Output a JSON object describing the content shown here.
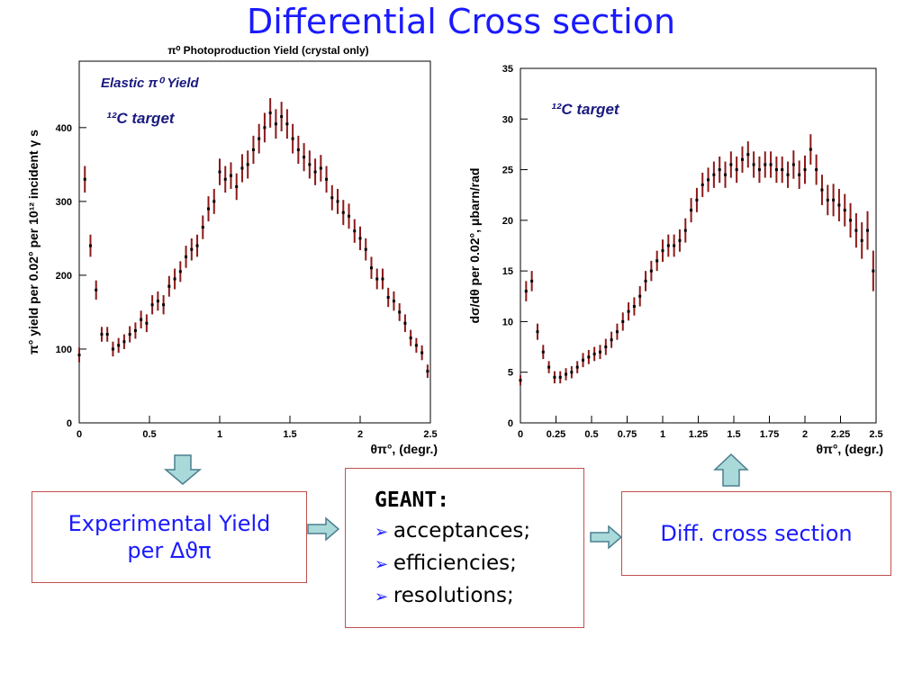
{
  "title": "Differential Cross section",
  "chart_data": [
    {
      "type": "scatter",
      "title": "π⁰ Photoproduction Yield (crystal only)",
      "xlabel": "θπ°, (degr.)",
      "ylabel": "π° yield per 0.02° per 10¹² incident γ s",
      "annotations": [
        "Elastic π⁰ Yield",
        "¹²C target"
      ],
      "color": "#8b1a1a",
      "xlim": [
        0,
        2.5
      ],
      "ylim": [
        0,
        490
      ],
      "xticks": [
        0,
        0.5,
        1,
        1.5,
        2,
        2.5
      ],
      "yticks": [
        0,
        100,
        200,
        300,
        400
      ],
      "x": [
        0,
        0.04,
        0.08,
        0.12,
        0.16,
        0.2,
        0.24,
        0.28,
        0.32,
        0.36,
        0.4,
        0.44,
        0.48,
        0.52,
        0.56,
        0.6,
        0.64,
        0.68,
        0.72,
        0.76,
        0.8,
        0.84,
        0.88,
        0.92,
        0.96,
        1,
        1.04,
        1.08,
        1.12,
        1.16,
        1.2,
        1.24,
        1.28,
        1.32,
        1.36,
        1.4,
        1.44,
        1.48,
        1.52,
        1.56,
        1.6,
        1.64,
        1.68,
        1.72,
        1.76,
        1.8,
        1.84,
        1.88,
        1.92,
        1.96,
        2,
        2.04,
        2.08,
        2.12,
        2.16,
        2.2,
        2.24,
        2.28,
        2.32,
        2.36,
        2.4,
        2.44,
        2.48
      ],
      "values": [
        92,
        330,
        240,
        180,
        120,
        120,
        100,
        105,
        110,
        120,
        125,
        140,
        135,
        160,
        165,
        160,
        185,
        195,
        205,
        225,
        235,
        240,
        265,
        290,
        300,
        340,
        330,
        335,
        320,
        345,
        350,
        370,
        385,
        400,
        420,
        405,
        415,
        405,
        385,
        370,
        360,
        350,
        340,
        345,
        330,
        305,
        300,
        285,
        280,
        260,
        250,
        235,
        210,
        195,
        195,
        170,
        165,
        150,
        135,
        115,
        105,
        95,
        70
      ],
      "errors": [
        10,
        18,
        15,
        13,
        10,
        10,
        10,
        10,
        10,
        11,
        11,
        12,
        12,
        13,
        13,
        13,
        14,
        14,
        14,
        15,
        15,
        15,
        16,
        17,
        17,
        18,
        18,
        18,
        18,
        19,
        19,
        19,
        20,
        20,
        20,
        20,
        20,
        20,
        20,
        19,
        19,
        19,
        18,
        18,
        18,
        17,
        17,
        17,
        17,
        16,
        16,
        15,
        15,
        14,
        14,
        13,
        13,
        12,
        12,
        11,
        10,
        10,
        9
      ]
    },
    {
      "type": "scatter",
      "xlabel": "θπ°, (degr.)",
      "ylabel": "dσ/dθ per 0.02°, μbarn/rad",
      "annotations": [
        "¹²C target"
      ],
      "color": "#8b1a1a",
      "xlim": [
        0,
        2.5
      ],
      "ylim": [
        0,
        35
      ],
      "xticks": [
        0,
        0.25,
        0.5,
        0.75,
        1,
        1.25,
        1.5,
        1.75,
        2,
        2.25,
        2.5
      ],
      "yticks": [
        0,
        5,
        10,
        15,
        20,
        25,
        30,
        35
      ],
      "x": [
        0,
        0.04,
        0.08,
        0.12,
        0.16,
        0.2,
        0.24,
        0.28,
        0.32,
        0.36,
        0.4,
        0.44,
        0.48,
        0.52,
        0.56,
        0.6,
        0.64,
        0.68,
        0.72,
        0.76,
        0.8,
        0.84,
        0.88,
        0.92,
        0.96,
        1,
        1.04,
        1.08,
        1.12,
        1.16,
        1.2,
        1.24,
        1.28,
        1.32,
        1.36,
        1.4,
        1.44,
        1.48,
        1.52,
        1.56,
        1.6,
        1.64,
        1.68,
        1.72,
        1.76,
        1.8,
        1.84,
        1.88,
        1.92,
        1.96,
        2,
        2.04,
        2.08,
        2.12,
        2.16,
        2.2,
        2.24,
        2.28,
        2.32,
        2.36,
        2.4,
        2.44,
        2.48
      ],
      "values": [
        4.2,
        13,
        14,
        9,
        7,
        5.5,
        4.5,
        4.5,
        4.8,
        5,
        5.5,
        6.2,
        6.5,
        6.8,
        7,
        7.5,
        8.2,
        9,
        10,
        11,
        11.5,
        12.5,
        14,
        15,
        16,
        17,
        17.5,
        17.5,
        18,
        19,
        21,
        22,
        23.5,
        24,
        24.5,
        25,
        24.5,
        25.5,
        25,
        26,
        26.5,
        25.5,
        25,
        25.5,
        25.5,
        25,
        25,
        24.5,
        25.5,
        24.5,
        25,
        27,
        25,
        23,
        22,
        22,
        21.5,
        21,
        20,
        19,
        18,
        19,
        15
      ],
      "errors": [
        0.5,
        1,
        1,
        0.8,
        0.7,
        0.6,
        0.6,
        0.6,
        0.6,
        0.6,
        0.6,
        0.7,
        0.7,
        0.7,
        0.7,
        0.8,
        0.8,
        0.8,
        0.9,
        0.9,
        0.9,
        1,
        1,
        1,
        1,
        1.1,
        1.1,
        1.1,
        1.1,
        1.2,
        1.2,
        1.2,
        1.2,
        1.2,
        1.3,
        1.3,
        1.3,
        1.3,
        1.3,
        1.3,
        1.3,
        1.3,
        1.3,
        1.3,
        1.3,
        1.3,
        1.3,
        1.3,
        1.4,
        1.4,
        1.4,
        1.5,
        1.5,
        1.5,
        1.5,
        1.6,
        1.6,
        1.6,
        1.7,
        1.7,
        1.8,
        1.9,
        2
      ]
    }
  ],
  "flow": {
    "yield_box": [
      "Experimental Yield",
      "per Δϑπ"
    ],
    "geant_box": {
      "heading": "GEANT:",
      "items": [
        "acceptances;",
        "efficiencies;",
        "resolutions;"
      ]
    },
    "result_box": "Diff. cross section"
  }
}
